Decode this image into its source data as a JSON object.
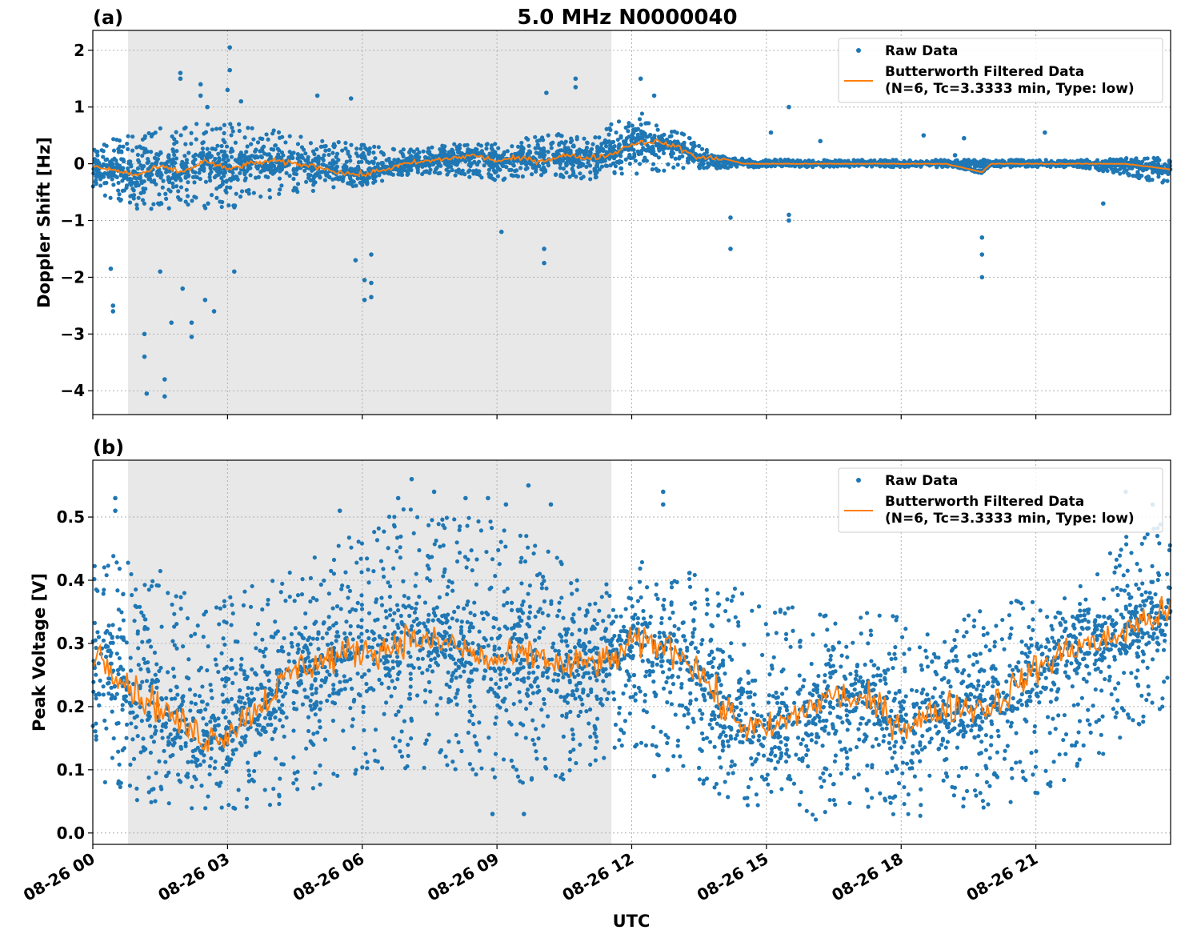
{
  "figure": {
    "title": "5.0 MHz N0000040",
    "xlabel": "UTC",
    "time_axis": {
      "start": "08-26 00:00",
      "end": "08-27 00:00",
      "ticks": [
        "08-26 00",
        "08-26 03",
        "08-26 06",
        "08-26 09",
        "08-26 12",
        "08-26 15",
        "08-26 18",
        "08-26 21"
      ]
    },
    "night_shading": {
      "start": "08-26 00:47",
      "end": "08-26 11:33",
      "color": "#e8e8e8"
    },
    "colors": {
      "raw": "#1f77b4",
      "filtered": "#ff7f0e"
    }
  },
  "chart_data": [
    {
      "type": "scatter",
      "panel_label": "(a)",
      "title": "5.0 MHz N0000040",
      "xlabel": "",
      "ylabel": "Doppler Shift [Hz]",
      "ylim": [
        -4.42,
        2.35
      ],
      "yticks": [
        2,
        1,
        0,
        -1,
        -2,
        -3,
        -4
      ],
      "ytick_labels": [
        "2",
        "1",
        "0",
        "−1",
        "−2",
        "−3",
        "−4"
      ],
      "grid": true,
      "legend_position": "top-right",
      "legend": [
        "Raw Data",
        "Butterworth Filtered Data",
        "(N=6, Tc=3.3333 min, Type: low)"
      ],
      "series": [
        {
          "name": "Raw Data",
          "kind": "points",
          "envelope_hour": [
            0,
            1,
            2,
            3,
            4,
            5,
            6,
            7,
            8,
            9,
            10,
            11,
            11.5,
            12,
            13,
            14,
            15,
            16,
            17,
            18,
            19,
            20,
            21,
            22,
            23,
            24
          ],
          "envelope_low": [
            -0.5,
            -0.8,
            -0.8,
            -0.8,
            -0.6,
            -0.5,
            -0.4,
            -0.2,
            -0.2,
            -0.3,
            -0.2,
            -0.3,
            -0.2,
            -0.2,
            -0.1,
            -0.08,
            -0.06,
            -0.06,
            -0.06,
            -0.06,
            -0.06,
            -0.06,
            -0.06,
            -0.06,
            -0.2,
            -0.4
          ],
          "envelope_high": [
            0.35,
            0.55,
            0.7,
            0.75,
            0.6,
            0.45,
            0.35,
            0.25,
            0.35,
            0.35,
            0.55,
            0.55,
            0.7,
            1.0,
            0.6,
            0.1,
            0.08,
            0.07,
            0.07,
            0.07,
            0.07,
            0.07,
            0.07,
            0.07,
            0.1,
            0.12
          ],
          "outliers": [
            [
              0.45,
              -2.6
            ],
            [
              0.45,
              -2.5
            ],
            [
              0.4,
              -1.85
            ],
            [
              1.15,
              -3.0
            ],
            [
              1.2,
              -4.05
            ],
            [
              1.15,
              -3.4
            ],
            [
              1.6,
              -4.1
            ],
            [
              1.6,
              -3.8
            ],
            [
              1.75,
              -2.8
            ],
            [
              1.5,
              -1.9
            ],
            [
              2.0,
              -2.2
            ],
            [
              2.2,
              -3.05
            ],
            [
              2.2,
              -2.8
            ],
            [
              2.5,
              -2.4
            ],
            [
              2.7,
              -2.6
            ],
            [
              3.15,
              -1.9
            ],
            [
              1.95,
              1.6
            ],
            [
              1.95,
              1.5
            ],
            [
              2.4,
              1.4
            ],
            [
              2.4,
              1.2
            ],
            [
              2.55,
              1.0
            ],
            [
              3.05,
              2.05
            ],
            [
              3.05,
              1.65
            ],
            [
              3.0,
              1.3
            ],
            [
              3.3,
              1.1
            ],
            [
              5.0,
              1.2
            ],
            [
              5.75,
              1.15
            ],
            [
              6.05,
              -2.05
            ],
            [
              6.05,
              -2.4
            ],
            [
              6.2,
              -2.1
            ],
            [
              6.2,
              -2.35
            ],
            [
              5.85,
              -1.7
            ],
            [
              6.2,
              -1.6
            ],
            [
              9.1,
              -1.2
            ],
            [
              10.05,
              -1.5
            ],
            [
              10.05,
              -1.75
            ],
            [
              10.1,
              1.25
            ],
            [
              10.75,
              1.5
            ],
            [
              10.75,
              1.35
            ],
            [
              12.2,
              1.5
            ],
            [
              12.5,
              1.2
            ],
            [
              14.2,
              -1.5
            ],
            [
              14.2,
              -0.95
            ],
            [
              15.1,
              0.55
            ],
            [
              15.5,
              1.0
            ],
            [
              15.5,
              -0.9
            ],
            [
              15.5,
              -1.0
            ],
            [
              16.2,
              0.4
            ],
            [
              18.5,
              0.5
            ],
            [
              19.2,
              0.15
            ],
            [
              19.4,
              0.45
            ],
            [
              19.8,
              -1.6
            ],
            [
              19.8,
              -2.0
            ],
            [
              19.8,
              -1.3
            ],
            [
              21.2,
              0.55
            ],
            [
              22.5,
              -0.7
            ]
          ]
        },
        {
          "name": "Butterworth Filtered Data",
          "kind": "line",
          "hour": [
            0,
            0.5,
            1,
            1.5,
            2,
            2.5,
            3,
            3.5,
            4,
            4.5,
            5,
            5.5,
            6,
            6.5,
            7,
            7.5,
            8,
            8.5,
            9,
            9.5,
            10,
            10.5,
            11,
            11.5,
            12,
            12.5,
            13,
            13.5,
            14,
            14.5,
            15,
            16,
            17,
            18,
            19,
            19.8,
            20,
            21,
            22,
            23,
            24
          ],
          "value": [
            -0.05,
            -0.12,
            -0.2,
            -0.05,
            -0.15,
            0.05,
            -0.1,
            0.0,
            0.05,
            0.0,
            -0.05,
            -0.15,
            -0.2,
            -0.1,
            0.0,
            0.05,
            0.1,
            0.15,
            0.05,
            0.1,
            0.05,
            0.15,
            0.1,
            0.15,
            0.35,
            0.4,
            0.3,
            0.1,
            0.1,
            0.0,
            0.0,
            0.0,
            0.0,
            0.0,
            0.0,
            -0.15,
            0.0,
            0.0,
            0.0,
            0.0,
            -0.1
          ]
        }
      ]
    },
    {
      "type": "scatter",
      "panel_label": "(b)",
      "title": "",
      "xlabel": "UTC",
      "ylabel": "Peak Voltage [V]",
      "ylim": [
        -0.018,
        0.59
      ],
      "yticks": [
        0.5,
        0.4,
        0.3,
        0.2,
        0.1,
        0.0
      ],
      "ytick_labels": [
        "0.5",
        "0.4",
        "0.3",
        "0.2",
        "0.1",
        "0.0"
      ],
      "grid": true,
      "legend_position": "top-right",
      "legend": [
        "Raw Data",
        "Butterworth Filtered Data",
        "(N=6, Tc=3.3333 min, Type: low)"
      ],
      "series": [
        {
          "name": "Raw Data",
          "kind": "points",
          "envelope_hour": [
            0,
            1,
            2,
            3,
            4,
            5,
            6,
            7,
            8,
            9,
            10,
            11,
            11.5,
            12,
            13,
            14,
            15,
            16,
            17,
            18,
            19,
            20,
            21,
            22,
            23,
            24
          ],
          "envelope_low": [
            0.08,
            0.05,
            0.04,
            0.03,
            0.04,
            0.06,
            0.09,
            0.1,
            0.1,
            0.08,
            0.06,
            0.1,
            0.12,
            0.14,
            0.1,
            0.05,
            0.03,
            0.02,
            0.03,
            0.02,
            0.03,
            0.04,
            0.05,
            0.1,
            0.15,
            0.2
          ],
          "envelope_high": [
            0.45,
            0.43,
            0.4,
            0.38,
            0.42,
            0.45,
            0.48,
            0.52,
            0.5,
            0.5,
            0.48,
            0.42,
            0.4,
            0.44,
            0.42,
            0.4,
            0.36,
            0.36,
            0.36,
            0.34,
            0.33,
            0.36,
            0.38,
            0.42,
            0.47,
            0.5
          ],
          "outliers": [
            [
              0.5,
              0.53
            ],
            [
              0.5,
              0.51
            ],
            [
              5.5,
              0.51
            ],
            [
              6.8,
              0.53
            ],
            [
              7.1,
              0.56
            ],
            [
              7.6,
              0.54
            ],
            [
              8.3,
              0.53
            ],
            [
              8.8,
              0.53
            ],
            [
              9.2,
              0.52
            ],
            [
              9.7,
              0.55
            ],
            [
              10.2,
              0.52
            ],
            [
              12.7,
              0.54
            ],
            [
              12.7,
              0.52
            ],
            [
              22.1,
              0.5
            ],
            [
              23.6,
              0.52
            ],
            [
              23.0,
              0.54
            ],
            [
              8.9,
              0.03
            ],
            [
              9.6,
              0.03
            ],
            [
              12.8,
              0.1
            ],
            [
              12.5,
              0.09
            ]
          ]
        },
        {
          "name": "Butterworth Filtered Data",
          "kind": "line",
          "hour": [
            0,
            0.5,
            1,
            1.5,
            2,
            2.5,
            3,
            3.5,
            4,
            4.5,
            5,
            5.5,
            6,
            6.5,
            7,
            7.5,
            8,
            8.5,
            9,
            9.5,
            10,
            10.5,
            11,
            11.5,
            12,
            12.5,
            13,
            13.5,
            14,
            14.5,
            15,
            15.5,
            16,
            16.5,
            17,
            17.5,
            18,
            18.5,
            19,
            19.5,
            20,
            20.5,
            21,
            21.5,
            22,
            22.5,
            23,
            23.5,
            24
          ],
          "value": [
            0.29,
            0.26,
            0.22,
            0.2,
            0.17,
            0.15,
            0.16,
            0.19,
            0.22,
            0.26,
            0.27,
            0.28,
            0.29,
            0.29,
            0.31,
            0.3,
            0.3,
            0.28,
            0.27,
            0.28,
            0.28,
            0.26,
            0.27,
            0.27,
            0.3,
            0.3,
            0.29,
            0.26,
            0.2,
            0.17,
            0.16,
            0.18,
            0.2,
            0.22,
            0.21,
            0.2,
            0.17,
            0.18,
            0.2,
            0.2,
            0.2,
            0.23,
            0.26,
            0.28,
            0.3,
            0.3,
            0.32,
            0.34,
            0.35
          ]
        }
      ]
    }
  ]
}
